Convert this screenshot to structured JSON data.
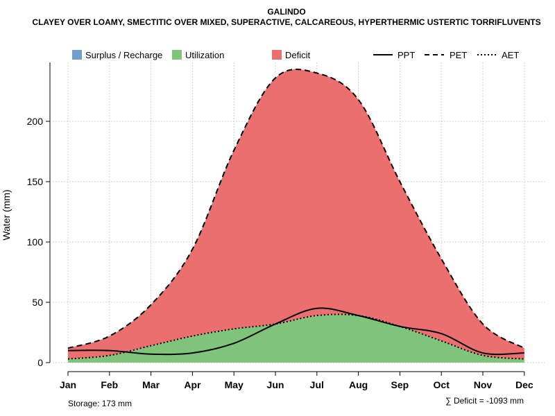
{
  "chart_data": {
    "type": "area",
    "title": "GALINDO",
    "subtitle": "CLAYEY OVER LOAMY, SMECTITIC OVER MIXED, SUPERACTIVE, CALCAREOUS, HYPERTHERMIC USTERTIC TORRIFLUVENTS",
    "xlabel": "",
    "ylabel": "Water (mm)",
    "categories": [
      "Jan",
      "Feb",
      "Mar",
      "Apr",
      "May",
      "Jun",
      "Jul",
      "Aug",
      "Sep",
      "Oct",
      "Nov",
      "Dec"
    ],
    "ylim": [
      0,
      240
    ],
    "yticks": [
      0,
      50,
      100,
      150,
      200
    ],
    "series": [
      {
        "name": "PPT",
        "style": "solid",
        "values": [
          10,
          10,
          7,
          8,
          16,
          32,
          45,
          39,
          30,
          24,
          8,
          8
        ]
      },
      {
        "name": "PET",
        "style": "dashed",
        "values": [
          12,
          22,
          48,
          94,
          176,
          236,
          240,
          218,
          150,
          86,
          32,
          12
        ]
      },
      {
        "name": "AET",
        "style": "dotted",
        "values": [
          3,
          6,
          14,
          22,
          28,
          32,
          39,
          39,
          30,
          18,
          6,
          3
        ]
      }
    ],
    "areas": [
      {
        "name": "Surplus / Recharge",
        "color": "#729ECE"
      },
      {
        "name": "Utilization",
        "color": "#7FC47A"
      },
      {
        "name": "Deficit",
        "color": "#EB6F6F"
      }
    ],
    "grid": true,
    "legend_position": "top",
    "annotations": {
      "storage": "Storage: 173 mm",
      "deficit": "∑ Deficit = -1093 mm"
    }
  }
}
